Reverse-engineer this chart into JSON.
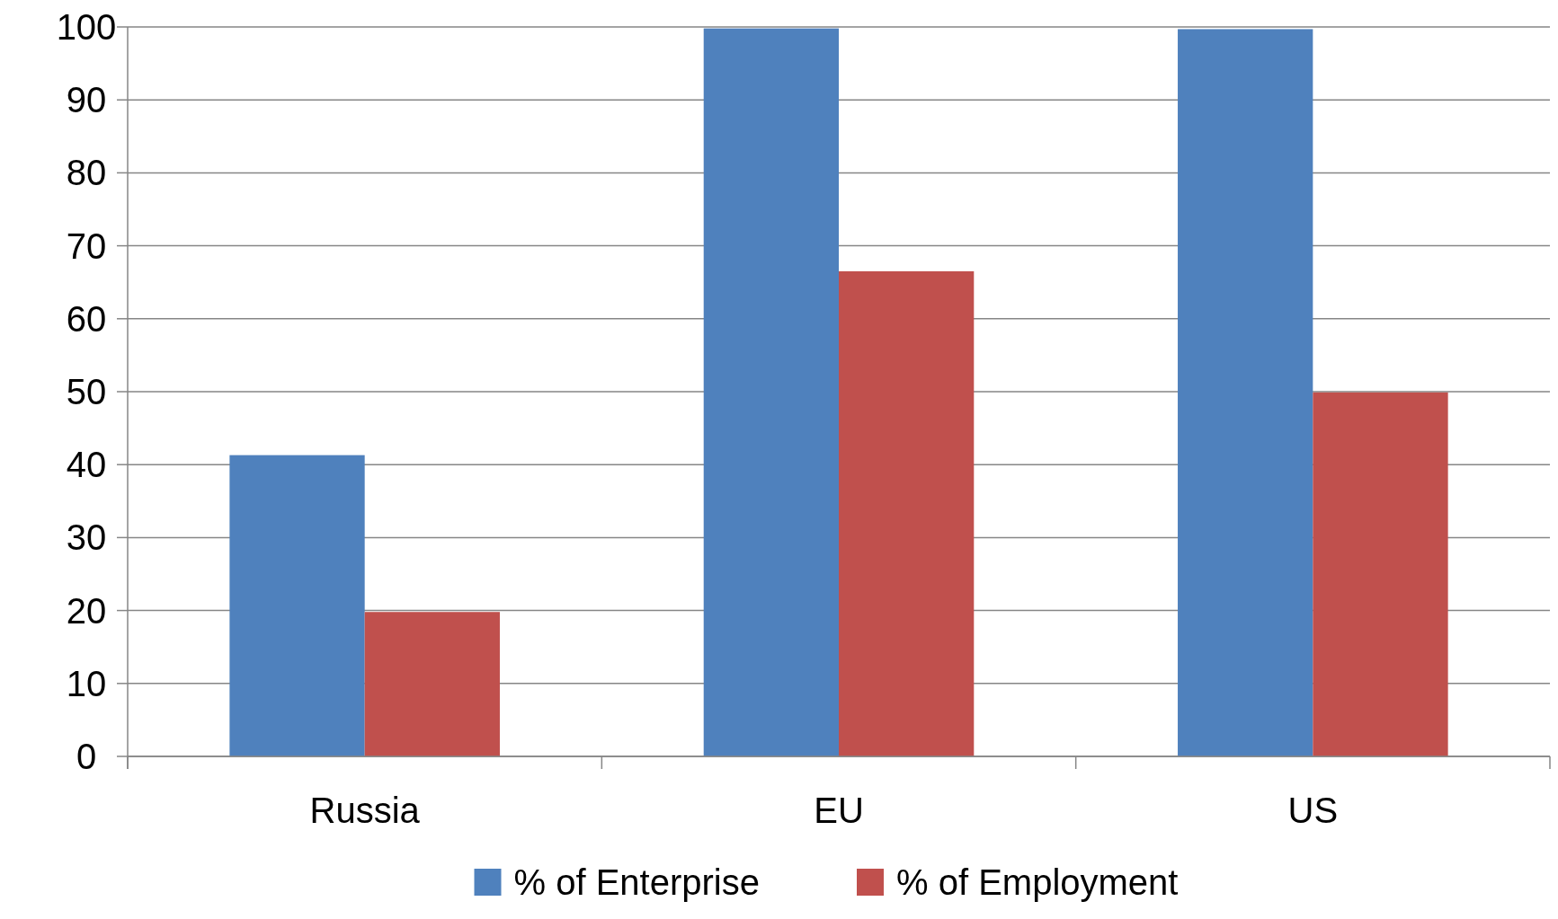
{
  "chart_data": {
    "type": "bar",
    "categories": [
      "Russia",
      "EU",
      "US"
    ],
    "series": [
      {
        "name": "% of Enterprise",
        "color": "#4f81bd",
        "values": [
          41.3,
          99.8,
          99.7
        ]
      },
      {
        "name": "% of Employment",
        "color": "#c0504d",
        "values": [
          19.8,
          66.5,
          49.9
        ]
      }
    ],
    "ylim": [
      0,
      100
    ],
    "yticks": [
      0,
      10,
      20,
      30,
      40,
      50,
      60,
      70,
      80,
      90,
      100
    ],
    "grid": "y",
    "legend": "bottom"
  }
}
